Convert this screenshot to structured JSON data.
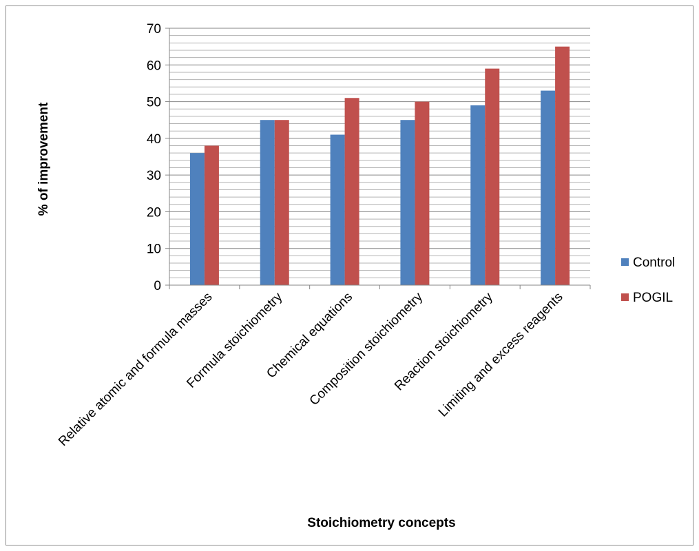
{
  "chart_data": {
    "type": "bar",
    "title": "",
    "xlabel": "Stoichiometry concepts",
    "ylabel": "% of  improvement",
    "categories": [
      "Relative atomic and formula masses",
      "Formula stoichiometry",
      "Chemical equations",
      "Composition stoichiometry",
      "Reaction stoichiometry",
      "Limiting and excess reagents"
    ],
    "series": [
      {
        "name": "Control",
        "values": [
          36,
          45,
          41,
          45,
          49,
          53
        ],
        "color": "#4f81bd"
      },
      {
        "name": "POGIL",
        "values": [
          38,
          45,
          51,
          50,
          59,
          65
        ],
        "color": "#c0504d"
      }
    ],
    "ylim": [
      0,
      70
    ],
    "yticks": [
      0,
      10,
      20,
      30,
      40,
      50,
      60,
      70
    ],
    "grid": {
      "major_step": 10,
      "minor_step": 2
    },
    "legend": "right"
  }
}
